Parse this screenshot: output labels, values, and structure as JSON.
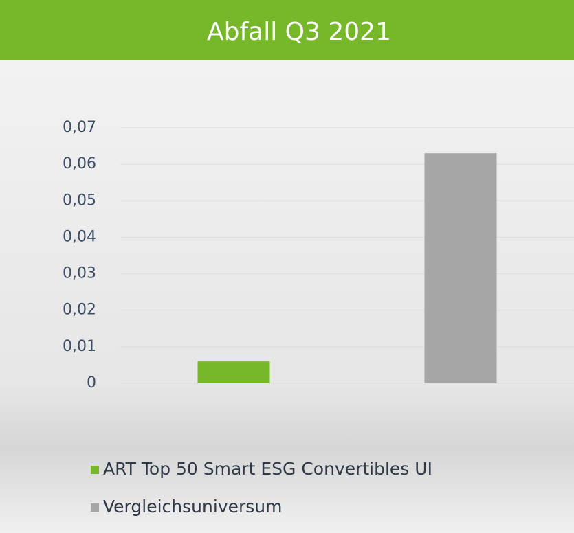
{
  "chart_data": {
    "type": "bar",
    "title": "Abfall Q3 2021",
    "categories": [
      null
    ],
    "series": [
      {
        "name": "ART Top 50 Smart ESG Convertibles UI",
        "color": "#77b82a",
        "values": [
          0.006
        ]
      },
      {
        "name": "Vergleichsuniversum",
        "color": "#a6a6a6",
        "values": [
          0.063
        ]
      }
    ],
    "ylim": [
      0,
      0.07
    ],
    "yticks": [
      0,
      {
        "value": 0.01,
        "label": "0,01"
      },
      {
        "value": 0.02,
        "label": "0,02"
      },
      {
        "value": 0.03,
        "label": "0,03"
      },
      {
        "value": 0.04,
        "label": "0,04"
      },
      {
        "value": 0.05,
        "label": "0,05"
      },
      {
        "value": 0.06,
        "label": "0,06"
      },
      {
        "value": 0.07,
        "label": "0,07"
      }
    ],
    "grid": true
  }
}
